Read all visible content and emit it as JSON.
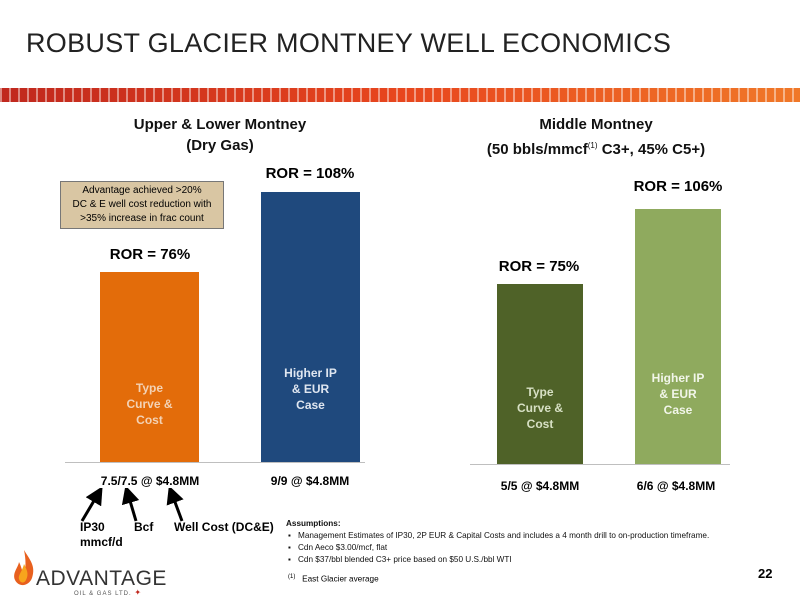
{
  "slide": {
    "title": "ROBUST GLACIER MONTNEY WELL ECONOMICS",
    "page_number": "22",
    "stripe_colors": [
      "#c0281e",
      "#e8461e",
      "#f07828"
    ]
  },
  "chart_data": [
    {
      "type": "bar",
      "title_line1": "Upper & Lower Montney",
      "title_line2": "(Dry Gas)",
      "categories": [
        "7.5/7.5 @ $4.8MM",
        "9/9 @ $4.8MM"
      ],
      "values": [
        76,
        108
      ],
      "value_labels": [
        "ROR = 76%",
        "ROR = 108%"
      ],
      "bar_labels": [
        "Type\nCurve &\nCost",
        "Higher IP\n& EUR\nCase"
      ],
      "colors": [
        "#e36c0a",
        "#1f497d"
      ],
      "callout": "Advantage achieved >20%\nDC & E well cost reduction with\n>35% increase in frac count"
    },
    {
      "type": "bar",
      "title_line1": "Middle Montney",
      "title_line2_pre": "(50 bbls/mmcf",
      "title_line2_sup": "(1)",
      "title_line2_post": " C3+, 45% C5+)",
      "categories": [
        "5/5 @ $4.8MM",
        "6/6 @ $4.8MM"
      ],
      "values": [
        75,
        106
      ],
      "value_labels": [
        "ROR = 75%",
        "ROR = 106%"
      ],
      "bar_labels": [
        "Type\nCurve &\nCost",
        "Higher IP\n& EUR\nCase"
      ],
      "colors": [
        "#4f6228",
        "#8faa5e"
      ]
    }
  ],
  "legend": {
    "ip30": "IP30\nmmcf/d",
    "bcf": "Bcf",
    "well_cost": "Well Cost (DC&E)"
  },
  "assumptions": {
    "title": "Assumptions:",
    "items": [
      "Management Estimates of IP30, 2P EUR & Capital Costs and includes a 4 month drill to on-production timeframe.",
      "Cdn Aeco $3.00/mcf, flat",
      "Cdn $37/bbl blended C3+ price based on $50 U.S./bbl WTI"
    ],
    "footnote_marker": "(1)",
    "footnote_text": "East Glacier average"
  },
  "logo": {
    "name": "ADVANTAGE",
    "sub": "OIL & GAS LTD."
  }
}
